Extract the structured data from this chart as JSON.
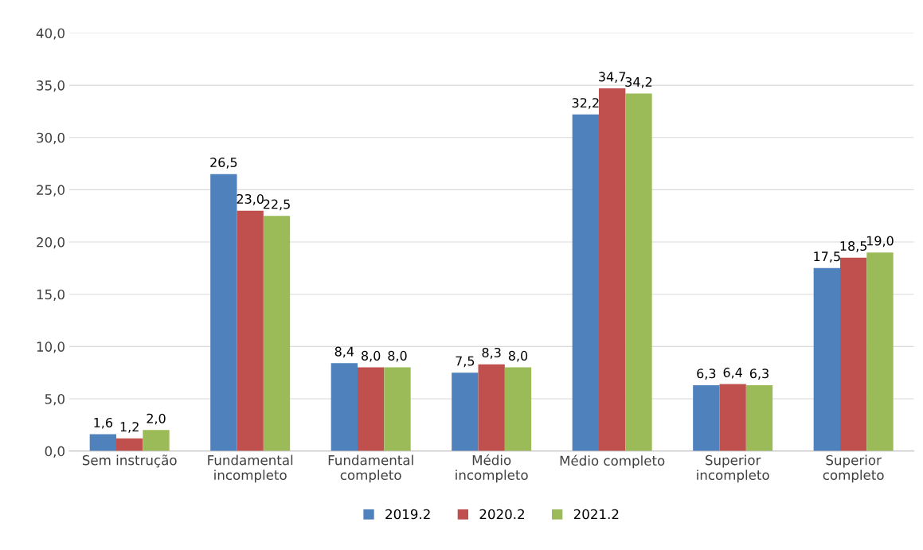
{
  "chart_data": {
    "type": "bar",
    "categories": [
      "Sem instrução",
      "Fundamental\nincompleto",
      "Fundamental\ncompleto",
      "Médio\nincompleto",
      "Médio completo",
      "Superior\nincompleto",
      "Superior\ncompleto"
    ],
    "series": [
      {
        "name": "2019.2",
        "color": "#4f81bd",
        "values": [
          1.6,
          26.5,
          8.4,
          7.5,
          32.2,
          6.3,
          17.5
        ],
        "value_labels": [
          "1,6",
          "26,5",
          "8,4",
          "7,5",
          "32,2",
          "6,3",
          "17,5"
        ]
      },
      {
        "name": "2020.2",
        "color": "#c0504d",
        "values": [
          1.2,
          23.0,
          8.0,
          8.3,
          34.7,
          6.4,
          18.5
        ],
        "value_labels": [
          "1,2",
          "23,0",
          "8,0",
          "8,3",
          "34,7",
          "6,4",
          "18,5"
        ]
      },
      {
        "name": "2021.2",
        "color": "#9bbb59",
        "values": [
          2.0,
          22.5,
          8.0,
          8.0,
          34.2,
          6.3,
          19.0
        ],
        "value_labels": [
          "2,0",
          "22,5",
          "8,0",
          "8,0",
          "34,2",
          "6,3",
          "19,0"
        ]
      }
    ],
    "ylim": [
      0,
      40
    ],
    "yticks": [
      {
        "value": 0,
        "label": "0,0"
      },
      {
        "value": 5,
        "label": "5,0"
      },
      {
        "value": 10,
        "label": "10,0"
      },
      {
        "value": 15,
        "label": "15,0"
      },
      {
        "value": 20,
        "label": "20,0"
      },
      {
        "value": 25,
        "label": "25,0"
      },
      {
        "value": 30,
        "label": "30,0"
      },
      {
        "value": 35,
        "label": "35,0"
      },
      {
        "value": 40,
        "label": "40,0"
      }
    ],
    "grid": "y",
    "legend": "bottom"
  }
}
